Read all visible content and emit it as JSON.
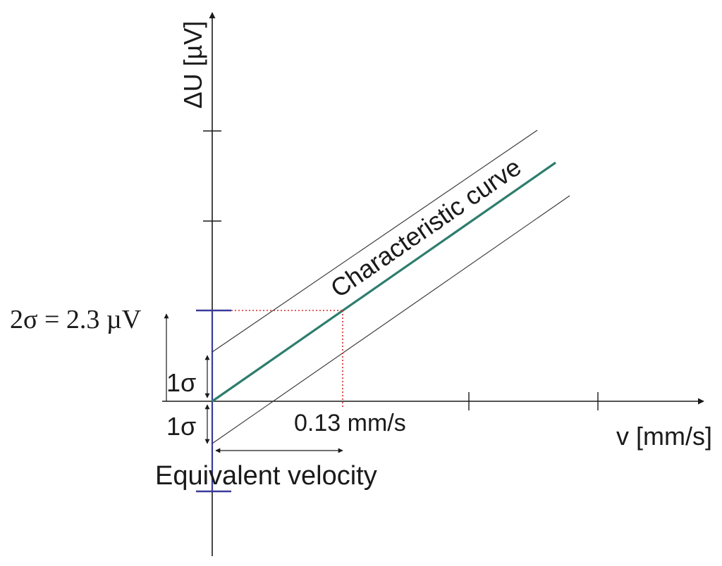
{
  "labels": {
    "y_axis": "ΔU [µV]",
    "x_axis": "v [mm/s]",
    "curve": "Characteristic curve",
    "sigma_upper": "1σ",
    "sigma_lower": "1σ",
    "two_sigma": "2σ = 2.3 µV",
    "velocity_value": "0.13 mm/s",
    "equivalent_velocity": "Equivalent velocity"
  },
  "colors": {
    "axis": "#1a1a1a",
    "curve": "#2e7d6e",
    "guide": "#d42a2a",
    "bar": "#3a3a9a"
  }
}
